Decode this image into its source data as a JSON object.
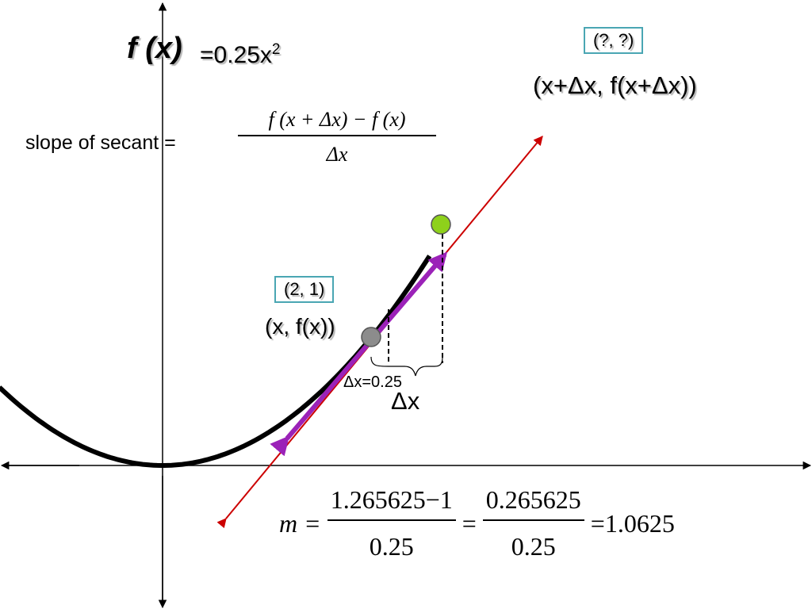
{
  "function": {
    "name": "f (x)",
    "equation_prefix": "=0.25x",
    "equation_exponent": "2"
  },
  "secant": {
    "label": "slope of secant =",
    "formula_numerator": "f (x + Δx) − f (x)",
    "formula_denominator": "Δx"
  },
  "point_b": {
    "box": "(?, ?)",
    "label": "(x+Δx, f(x+Δx))"
  },
  "point_a": {
    "box": "(2, 1)",
    "label": "(x, f(x))"
  },
  "delta": {
    "value_label": "Δx=0.25",
    "symbol": "Δx"
  },
  "slope_calc": {
    "lhs": "m =",
    "frac1_num": "1.265625−1",
    "frac1_den": "0.25",
    "eq1": "=",
    "frac2_num": "0.265625",
    "frac2_den": "0.25",
    "result": "=1.0625"
  },
  "colors": {
    "curve": "#000000",
    "secant_line": "#cc0000",
    "secant_segment": "#9b22b8",
    "point_a": "#8c8c8c",
    "point_b": "#8ed11b",
    "box_border": "#4aa6b3"
  }
}
